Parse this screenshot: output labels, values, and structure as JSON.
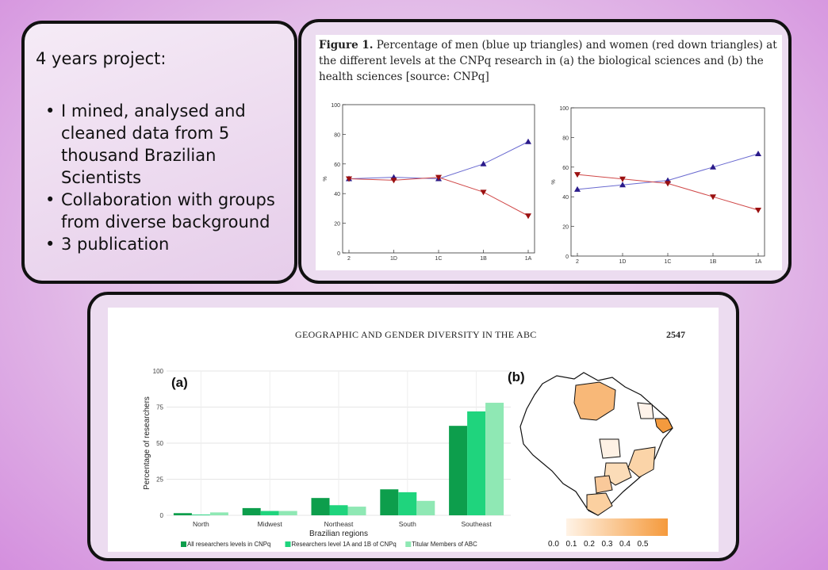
{
  "card_text": {
    "title": "4 years project:",
    "bullets": [
      "I mined, analysed and cleaned data from 5 thousand Brazilian Scientists",
      "Collaboration with groups from diverse background",
      "3 publication"
    ]
  },
  "figure1": {
    "caption_label": "Figure 1.",
    "caption_text": "Percentage of men (blue up triangles) and women (red down triangles) at the different levels at the CNPq research in (a) the biological sciences and (b) the health sciences [source: CNPq]",
    "y_label": "%",
    "colors": {
      "men": "#2a1a8a",
      "women": "#9a1010",
      "men_line": "#6a6ad0",
      "women_line": "#d04848"
    }
  },
  "figure2": {
    "running_head": "GEOGRAPHIC AND GENDER DIVERSITY IN THE ABC",
    "page_number": "2547",
    "panel_a_label": "(a)",
    "panel_b_label": "(b)",
    "map_scale_labels": [
      "0.0",
      "0.1",
      "0.2",
      "0.3",
      "0.4",
      "0.5"
    ],
    "map_colors": {
      "low": "#fff3e6",
      "high": "#f59a3c"
    }
  },
  "chart_data": [
    {
      "type": "line",
      "panel": "(a)",
      "x": [
        "2",
        "1D",
        "1C",
        "1B",
        "1A"
      ],
      "ylim": [
        0,
        100
      ],
      "yticks": [
        0,
        20,
        40,
        60,
        80,
        100
      ],
      "ylabel": "%",
      "series": [
        {
          "values": [
            50,
            51,
            50,
            60,
            75
          ]
        },
        {
          "values": [
            50,
            49,
            51,
            41,
            25
          ]
        }
      ]
    },
    {
      "type": "line",
      "panel": "(b)",
      "x": [
        "2",
        "1D",
        "1C",
        "1B",
        "1A"
      ],
      "ylim": [
        0,
        100
      ],
      "yticks": [
        0,
        20,
        40,
        60,
        80,
        100
      ],
      "ylabel": "%",
      "series": [
        {
          "values": [
            45,
            48,
            51,
            60,
            69
          ]
        },
        {
          "values": [
            55,
            52,
            49,
            40,
            31
          ]
        }
      ]
    },
    {
      "type": "bar",
      "panel": "(a)",
      "categories": [
        "North",
        "Midwest",
        "Northeast",
        "South",
        "Southeast"
      ],
      "xlabel": "Brazilian regions",
      "ylabel": "Percentage of researchers",
      "ylim": [
        0,
        100
      ],
      "yticks": [
        0,
        25,
        50,
        75,
        100
      ],
      "legend_position": "bottom",
      "series": [
        {
          "name": "All researchers levels in CNPq",
          "color": "#0d9e4c",
          "values": [
            1.5,
            5,
            12,
            18,
            62
          ]
        },
        {
          "name": "Researchers level 1A and 1B of CNPq",
          "color": "#1fd47d",
          "values": [
            0.5,
            3,
            7,
            16,
            72
          ]
        },
        {
          "name": "Titular Members of ABC",
          "color": "#8fe8b4",
          "values": [
            2,
            3,
            6,
            10,
            78
          ]
        }
      ]
    }
  ]
}
